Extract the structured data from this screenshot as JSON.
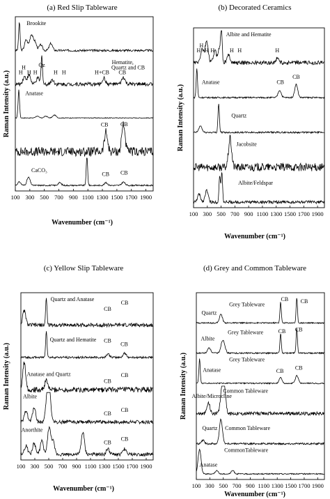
{
  "figure": {
    "xlabel": "Wavenumber (cm⁻¹)",
    "ylabel": "Raman Intensity (a.u.)",
    "xticks": [
      "100",
      "300",
      "500",
      "700",
      "900",
      "1100",
      "1300",
      "1500",
      "1700",
      "1900"
    ]
  },
  "chart_data": [
    {
      "type": "line",
      "title": "(a) Red Slip Tableware",
      "xlabel": "Wavenumber (cm⁻¹)",
      "ylabel": "Raman Intensity (a.u.)",
      "xlim": [
        100,
        2000
      ],
      "xticks": [
        100,
        300,
        500,
        700,
        900,
        1100,
        1300,
        1500,
        1700,
        1900
      ],
      "series": [
        {
          "name": "Brookite",
          "peaks": [
            [
              155,
              40
            ],
            [
              250,
              15
            ],
            [
              320,
              22
            ],
            [
              370,
              12
            ],
            [
              450,
              8
            ],
            [
              590,
              10
            ]
          ],
          "noise": 1.5,
          "labels": [
            {
              "text": "Brookite",
              "x": 390,
              "v": 1.12
            }
          ]
        },
        {
          "name": "Hematite, Quartz and CB",
          "peaks": [
            [
              225,
              10
            ],
            [
              290,
              12
            ],
            [
              410,
              8
            ],
            [
              465,
              38
            ],
            [
              610,
              6
            ],
            [
              1320,
              8
            ],
            [
              1590,
              9
            ]
          ],
          "noise": 2.5,
          "labels": [
            {
              "text": "H",
              "x": 215,
              "v": 0.62
            },
            {
              "text": "H",
              "x": 175,
              "v": 0.42
            },
            {
              "text": "H",
              "x": 290,
              "v": 0.42
            },
            {
              "text": "H",
              "x": 375,
              "v": 0.42
            },
            {
              "text": "Qz",
              "x": 465,
              "v": 0.72
            },
            {
              "text": "H",
              "x": 655,
              "v": 0.42
            },
            {
              "text": "H",
              "x": 770,
              "v": 0.42
            },
            {
              "text": "H+CB",
              "x": 1295,
              "v": 0.42
            },
            {
              "text": "CB",
              "x": 1575,
              "v": 0.42
            },
            {
              "text": "Hematite,",
              "x": 1580,
              "v": 0.84
            },
            {
              "text": "Quartz and CB",
              "x": 1655,
              "v": 0.62
            }
          ]
        },
        {
          "name": "Anatase",
          "peaks": [
            [
              148,
              48
            ],
            [
              400,
              3
            ],
            [
              520,
              3
            ],
            [
              640,
              5
            ]
          ],
          "noise": 0.6,
          "labels": [
            {
              "text": "Anatase",
              "x": 360,
              "v": 0.95
            }
          ]
        },
        {
          "name": "CB",
          "peaks": [
            [
              1350,
              15
            ],
            [
              1590,
              22
            ]
          ],
          "noise": 3.5,
          "labels": [
            {
              "text": "CB",
              "x": 1330,
              "v": 1.05
            },
            {
              "text": "CB",
              "x": 1600,
              "v": 1.25
            }
          ]
        },
        {
          "name": "CaCO3",
          "peaks": [
            [
              155,
              5
            ],
            [
              282,
              12
            ],
            [
              712,
              4
            ],
            [
              1087,
              42
            ],
            [
              1350,
              4
            ],
            [
              1590,
              5
            ]
          ],
          "noise": 1,
          "labels": [
            {
              "text": "CaCO₃",
              "x": 430,
              "v": 0.55
            },
            {
              "text": "CB",
              "x": 1345,
              "v": 0.4
            },
            {
              "text": "CB",
              "x": 1600,
              "v": 0.45
            }
          ]
        }
      ]
    },
    {
      "type": "line",
      "title": "(b) Decorated Ceramics",
      "xlabel": "Wavenumber (cm⁻¹)",
      "ylabel": "Raman Intensity (a.u.)",
      "xlim": [
        100,
        2000
      ],
      "xticks": [
        100,
        300,
        500,
        700,
        900,
        1100,
        1300,
        1500,
        1700,
        1900
      ],
      "series": [
        {
          "name": "Albite and Hematite",
          "peaks": [
            [
              225,
              14
            ],
            [
              290,
              22
            ],
            [
              410,
              12
            ],
            [
              480,
              16
            ],
            [
              505,
              30
            ],
            [
              610,
              8
            ],
            [
              1320,
              5
            ]
          ],
          "noise": 2,
          "labels": [
            {
              "text": "Albite and Hematite",
              "x": 900,
              "v": 1.15
            },
            {
              "text": "H",
              "x": 215,
              "v": 0.62
            },
            {
              "text": "H",
              "x": 175,
              "v": 0.42
            },
            {
              "text": "H",
              "x": 290,
              "v": 0.42
            },
            {
              "text": "H",
              "x": 375,
              "v": 0.42
            },
            {
              "text": "H",
              "x": 655,
              "v": 0.42
            },
            {
              "text": "H",
              "x": 770,
              "v": 0.42
            },
            {
              "text": "H",
              "x": 1315,
              "v": 0.42
            }
          ]
        },
        {
          "name": "Anatase",
          "peaks": [
            [
              148,
              40
            ],
            [
              1350,
              10
            ],
            [
              1590,
              18
            ]
          ],
          "noise": 1,
          "labels": [
            {
              "text": "Anatase",
              "x": 350,
              "v": 0.55
            },
            {
              "text": "CB",
              "x": 1360,
              "v": 0.55
            },
            {
              "text": "CB",
              "x": 1590,
              "v": 0.75
            }
          ]
        },
        {
          "name": "Quartz",
          "peaks": [
            [
              200,
              8
            ],
            [
              465,
              36
            ]
          ],
          "noise": 1,
          "labels": [
            {
              "text": "Quartz",
              "x": 760,
              "v": 0.6
            }
          ]
        },
        {
          "name": "Jacobsite",
          "peaks": [
            [
              630,
              15
            ]
          ],
          "noise": 2,
          "labels": [
            {
              "text": "Jacobsite",
              "x": 870,
              "v": 0.85
            }
          ]
        },
        {
          "name": "Albite/Feldspar",
          "peaks": [
            [
              180,
              8
            ],
            [
              290,
              12
            ],
            [
              480,
              28
            ],
            [
              510,
              30
            ]
          ],
          "noise": 1.5,
          "labels": [
            {
              "text": "Albite/Feldspar",
              "x": 1000,
              "v": 0.7
            }
          ]
        }
      ]
    },
    {
      "type": "line",
      "title": "(c) Yellow Slip Tableware",
      "xlabel": "Wavenumber (cm⁻¹)",
      "ylabel": "Raman Intensity (a.u.)",
      "xlim": [
        100,
        2000
      ],
      "xticks": [
        100,
        300,
        500,
        700,
        900,
        1100,
        1300,
        1500,
        1700,
        1900
      ],
      "series": [
        {
          "name": "Quartz and Anatase",
          "peaks": [
            [
              148,
              15
            ],
            [
              465,
              28
            ]
          ],
          "noise": 2,
          "labels": [
            {
              "text": "Quartz and Anatase",
              "x": 840,
              "v": 1.05
            },
            {
              "text": "CB",
              "x": 1345,
              "v": 0.62
            },
            {
              "text": "CB",
              "x": 1590,
              "v": 0.9
            }
          ]
        },
        {
          "name": "Quartz and Hematite",
          "peaks": [
            [
              465,
              38
            ],
            [
              1350,
              5
            ],
            [
              1590,
              6
            ]
          ],
          "noise": 1.5,
          "labels": [
            {
              "text": "Quartz and Hematite",
              "x": 850,
              "v": 0.7
            },
            {
              "text": "CB",
              "x": 1345,
              "v": 0.65
            },
            {
              "text": "CB",
              "x": 1585,
              "v": 0.5
            }
          ]
        },
        {
          "name": "Anatase and Quartz",
          "peaks": [
            [
              148,
              12
            ],
            [
              465,
              4
            ]
          ],
          "noise": 1.2,
          "labels": [
            {
              "text": "Anatase and Quartz",
              "x": 500,
              "v": 0.6
            },
            {
              "text": "CB",
              "x": 1345,
              "v": 0.3
            },
            {
              "text": "CB",
              "x": 1590,
              "v": 0.55
            }
          ]
        },
        {
          "name": "Albite",
          "peaks": [
            [
              175,
              8
            ],
            [
              290,
              10
            ],
            [
              480,
              18
            ],
            [
              510,
              18
            ]
          ],
          "noise": 1.2,
          "labels": [
            {
              "text": "Albite",
              "x": 230,
              "v": 1.05
            },
            {
              "text": "CB",
              "x": 1345,
              "v": 0.3
            },
            {
              "text": "CB",
              "x": 1590,
              "v": 0.45
            }
          ]
        },
        {
          "name": "Anorthite",
          "peaks": [
            [
              175,
              8
            ],
            [
              290,
              10
            ],
            [
              400,
              12
            ],
            [
              505,
              24
            ],
            [
              560,
              12
            ],
            [
              990,
              20
            ],
            [
              1350,
              5
            ],
            [
              1590,
              5
            ]
          ],
          "noise": 1.5,
          "labels": [
            {
              "text": "Anorthite",
              "x": 260,
              "v": 1.0
            },
            {
              "text": "CB",
              "x": 1345,
              "v": 0.45
            },
            {
              "text": "CB",
              "x": 1590,
              "v": 0.6
            }
          ]
        }
      ]
    },
    {
      "type": "line",
      "title": "(d) Grey and Common Tableware",
      "xlabel": "Wavenumber (cm⁻¹)",
      "ylabel": "Raman Intensity (a.u.)",
      "xlim": [
        100,
        2000
      ],
      "xticks": [
        100,
        300,
        500,
        700,
        900,
        1100,
        1300,
        1500,
        1700,
        1900
      ],
      "series": [
        {
          "name": "Grey Tableware (Quartz)",
          "peaks": [
            [
              465,
              14
            ],
            [
              1350,
              34
            ],
            [
              1590,
              40
            ]
          ],
          "noise": 1,
          "labels": [
            {
              "text": "Quartz",
              "x": 290,
              "v": 0.4
            },
            {
              "text": "Grey Tableware",
              "x": 850,
              "v": 0.8
            },
            {
              "text": "CB",
              "x": 1410,
              "v": 1.05
            },
            {
              "text": "CB",
              "x": 1700,
              "v": 0.95
            }
          ]
        },
        {
          "name": "Grey Tableware (Albite)",
          "peaks": [
            [
              290,
              8
            ],
            [
              480,
              12
            ],
            [
              510,
              12
            ],
            [
              1350,
              28
            ],
            [
              1590,
              36
            ]
          ],
          "noise": 1,
          "labels": [
            {
              "text": "Albite",
              "x": 270,
              "v": 0.6
            },
            {
              "text": "Grey Tableware",
              "x": 830,
              "v": 0.9
            },
            {
              "text": "CB",
              "x": 1370,
              "v": 0.95
            },
            {
              "text": "CB",
              "x": 1620,
              "v": 1.05
            }
          ]
        },
        {
          "name": "Grey Tableware (Anatase)",
          "peaks": [
            [
              148,
              26
            ],
            [
              1350,
              6
            ],
            [
              1590,
              8
            ]
          ],
          "noise": 0.6,
          "labels": [
            {
              "text": "Anatase",
              "x": 330,
              "v": 0.55
            },
            {
              "text": "Grey Tableware",
              "x": 850,
              "v": 1.1
            },
            {
              "text": "CB",
              "x": 1340,
              "v": 0.5
            },
            {
              "text": "CB",
              "x": 1620,
              "v": 0.65
            }
          ]
        },
        {
          "name": "Common Tableware (Albite/Microcline)",
          "peaks": [
            [
              280,
              6
            ],
            [
              480,
              14
            ],
            [
              515,
              14
            ]
          ],
          "noise": 1,
          "labels": [
            {
              "text": "Albite/Microcline",
              "x": 330,
              "v": 0.75
            },
            {
              "text": "Common Tableware",
              "x": 830,
              "v": 1.0
            }
          ]
        },
        {
          "name": "Common Tableware (Quartz)",
          "peaks": [
            [
              200,
              3
            ],
            [
              465,
              22
            ]
          ],
          "noise": 0.8,
          "labels": [
            {
              "text": "Quartz",
              "x": 300,
              "v": 0.65
            },
            {
              "text": "Common Tableware",
              "x": 860,
              "v": 0.65
            }
          ]
        },
        {
          "name": "Common Tableware (Anatase)",
          "peaks": [
            [
              148,
              22
            ],
            [
              400,
              3
            ],
            [
              640,
              3
            ]
          ],
          "noise": 0.5,
          "labels": [
            {
              "text": "Anatase",
              "x": 280,
              "v": 0.35
            },
            {
              "text": "CommonTableware",
              "x": 840,
              "v": 1.1
            }
          ]
        }
      ]
    }
  ]
}
